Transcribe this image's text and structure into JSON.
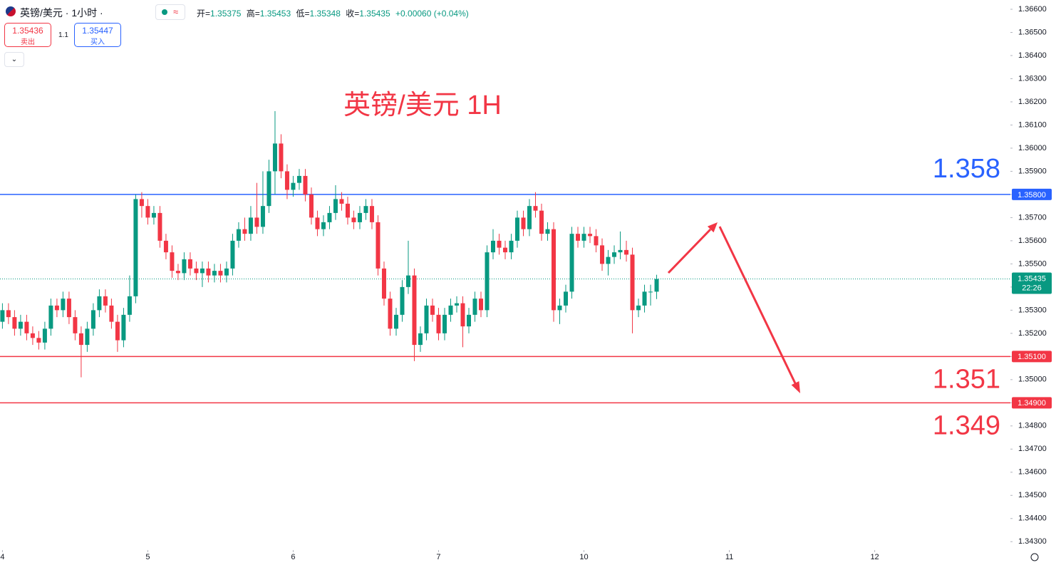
{
  "header": {
    "symbol": "英镑/美元 · 1小时 ·",
    "mode_icon": "≈",
    "ohlc": [
      {
        "label": "开=",
        "value": "1.35375"
      },
      {
        "label": "高=",
        "value": "1.35453"
      },
      {
        "label": "低=",
        "value": "1.35348"
      },
      {
        "label": "收=",
        "value": "1.35435"
      }
    ],
    "change": "+0.00060 (+0.04%)",
    "sell": {
      "price": "1.35436",
      "label": "卖出"
    },
    "spread": "1.1",
    "buy": {
      "price": "1.35447",
      "label": "买入"
    }
  },
  "chart_data": {
    "type": "candlestick",
    "title": "英镑/美元 1H",
    "x": [
      0,
      1,
      2,
      3,
      4,
      5,
      6,
      7,
      8,
      9,
      10,
      11,
      12,
      13,
      14,
      15,
      16,
      17,
      18,
      19,
      20,
      21,
      22,
      23,
      24,
      25,
      26,
      27,
      28,
      29,
      30,
      31,
      32,
      33,
      34,
      35,
      36,
      37,
      38,
      39,
      40,
      41,
      42,
      43,
      44,
      45,
      46,
      47,
      48,
      49,
      50,
      51,
      52,
      53,
      54,
      55,
      56,
      57,
      58,
      59,
      60,
      61,
      62,
      63,
      64,
      65,
      66,
      67,
      68,
      69,
      70,
      71,
      72,
      73,
      74,
      75,
      76,
      77,
      78,
      79,
      80,
      81,
      82,
      83,
      84,
      85,
      86,
      87,
      88,
      89,
      90,
      91,
      92,
      93,
      94,
      95,
      96,
      97,
      98,
      99,
      100,
      101,
      102,
      103,
      104,
      105,
      106,
      107,
      108
    ],
    "open": [
      1.3525,
      1.353,
      1.3527,
      1.3522,
      1.3525,
      1.352,
      1.3518,
      1.3516,
      1.3522,
      1.3532,
      1.353,
      1.3535,
      1.3527,
      1.352,
      1.3515,
      1.3522,
      1.353,
      1.3536,
      1.3532,
      1.3525,
      1.3517,
      1.3528,
      1.3536,
      1.3578,
      1.3575,
      1.357,
      1.3572,
      1.356,
      1.3555,
      1.3547,
      1.3546,
      1.3552,
      1.3548,
      1.3546,
      1.3548,
      1.3545,
      1.3547,
      1.3545,
      1.3548,
      1.356,
      1.3565,
      1.3563,
      1.357,
      1.3566,
      1.3575,
      1.359,
      1.3602,
      1.359,
      1.3582,
      1.3585,
      1.3588,
      1.358,
      1.357,
      1.3565,
      1.3568,
      1.3572,
      1.3578,
      1.3576,
      1.357,
      1.3568,
      1.3572,
      1.3575,
      1.3568,
      1.3548,
      1.3535,
      1.3522,
      1.3528,
      1.354,
      1.3545,
      1.3515,
      1.352,
      1.3532,
      1.3528,
      1.352,
      1.3528,
      1.3532,
      1.3533,
      1.3523,
      1.3528,
      1.3535,
      1.353,
      1.3555,
      1.356,
      1.3557,
      1.3555,
      1.356,
      1.357,
      1.3565,
      1.3575,
      1.3573,
      1.3563,
      1.3565,
      1.353,
      1.3532,
      1.3538,
      1.3563,
      1.356,
      1.3563,
      1.3562,
      1.3558,
      1.355,
      1.3553,
      1.3555,
      1.3556,
      1.3554,
      1.353,
      1.3532,
      1.3538,
      1.3538
    ],
    "high": [
      1.3533,
      1.3533,
      1.353,
      1.3528,
      1.3528,
      1.3523,
      1.3521,
      1.3525,
      1.3535,
      1.3535,
      1.3538,
      1.3538,
      1.353,
      1.3523,
      1.3525,
      1.3533,
      1.3539,
      1.3539,
      1.3535,
      1.3528,
      1.3531,
      1.3545,
      1.358,
      1.3581,
      1.3578,
      1.3575,
      1.3575,
      1.3563,
      1.3558,
      1.355,
      1.3555,
      1.3555,
      1.3551,
      1.3551,
      1.3551,
      1.355,
      1.355,
      1.3551,
      1.3563,
      1.3568,
      1.357,
      1.3575,
      1.3585,
      1.359,
      1.3595,
      1.3616,
      1.3606,
      1.3593,
      1.3588,
      1.3591,
      1.3591,
      1.3583,
      1.3573,
      1.3571,
      1.3575,
      1.3584,
      1.3581,
      1.3579,
      1.3573,
      1.3575,
      1.3578,
      1.3578,
      1.3571,
      1.3551,
      1.3538,
      1.3531,
      1.3543,
      1.356,
      1.3548,
      1.3523,
      1.3535,
      1.3535,
      1.3531,
      1.3531,
      1.3535,
      1.3536,
      1.3536,
      1.3531,
      1.3538,
      1.3538,
      1.3558,
      1.3565,
      1.3563,
      1.356,
      1.3563,
      1.3573,
      1.3573,
      1.3578,
      1.3581,
      1.3576,
      1.3568,
      1.3568,
      1.3535,
      1.3541,
      1.3566,
      1.3566,
      1.3566,
      1.3566,
      1.3565,
      1.3561,
      1.3556,
      1.3558,
      1.3564,
      1.356,
      1.3557,
      1.3535,
      1.3541,
      1.3541,
      1.35453
    ],
    "low": [
      1.3522,
      1.3524,
      1.3519,
      1.3519,
      1.3517,
      1.3515,
      1.3513,
      1.3513,
      1.3519,
      1.3527,
      1.3527,
      1.3524,
      1.3517,
      1.3501,
      1.3512,
      1.3519,
      1.3527,
      1.3529,
      1.3522,
      1.3512,
      1.3514,
      1.3525,
      1.3533,
      1.357,
      1.3567,
      1.3567,
      1.3557,
      1.3552,
      1.3544,
      1.3543,
      1.3543,
      1.3545,
      1.3543,
      1.354,
      1.3542,
      1.3542,
      1.3542,
      1.3542,
      1.3545,
      1.3557,
      1.356,
      1.356,
      1.3563,
      1.3563,
      1.3572,
      1.358,
      1.3587,
      1.3578,
      1.3579,
      1.3582,
      1.3577,
      1.3567,
      1.3562,
      1.3562,
      1.3565,
      1.3569,
      1.3573,
      1.3567,
      1.3565,
      1.3565,
      1.3569,
      1.3565,
      1.3545,
      1.3532,
      1.3519,
      1.3519,
      1.3525,
      1.3537,
      1.3508,
      1.3512,
      1.3517,
      1.3525,
      1.3517,
      1.3517,
      1.3525,
      1.3529,
      1.3514,
      1.352,
      1.3525,
      1.3527,
      1.3527,
      1.3552,
      1.3554,
      1.3552,
      1.3552,
      1.3557,
      1.3562,
      1.3562,
      1.357,
      1.356,
      1.356,
      1.3525,
      1.3524,
      1.3529,
      1.3535,
      1.3557,
      1.3557,
      1.3559,
      1.3555,
      1.3547,
      1.3545,
      1.355,
      1.3552,
      1.3551,
      1.352,
      1.3527,
      1.3529,
      1.3532,
      1.35348
    ],
    "close": [
      1.353,
      1.3527,
      1.3522,
      1.3525,
      1.352,
      1.3518,
      1.3516,
      1.3522,
      1.3532,
      1.353,
      1.3535,
      1.3527,
      1.352,
      1.3515,
      1.3522,
      1.353,
      1.3536,
      1.3532,
      1.3525,
      1.3517,
      1.3528,
      1.3536,
      1.3578,
      1.3575,
      1.357,
      1.3572,
      1.356,
      1.3555,
      1.3547,
      1.3546,
      1.3552,
      1.3548,
      1.3546,
      1.3548,
      1.3545,
      1.3547,
      1.3545,
      1.3548,
      1.356,
      1.3565,
      1.3563,
      1.357,
      1.3566,
      1.3575,
      1.359,
      1.3602,
      1.359,
      1.3582,
      1.3585,
      1.3588,
      1.358,
      1.357,
      1.3565,
      1.3568,
      1.3572,
      1.3578,
      1.3576,
      1.357,
      1.3568,
      1.3572,
      1.3575,
      1.3568,
      1.3548,
      1.3535,
      1.3522,
      1.3528,
      1.354,
      1.3545,
      1.3515,
      1.352,
      1.3532,
      1.3528,
      1.352,
      1.3528,
      1.3532,
      1.3533,
      1.3523,
      1.3528,
      1.3535,
      1.353,
      1.3555,
      1.356,
      1.3557,
      1.3555,
      1.356,
      1.357,
      1.3565,
      1.3575,
      1.3573,
      1.3563,
      1.3565,
      1.353,
      1.3532,
      1.3538,
      1.3563,
      1.356,
      1.3563,
      1.3562,
      1.3558,
      1.355,
      1.3553,
      1.3555,
      1.3556,
      1.3554,
      1.353,
      1.3532,
      1.3538,
      1.3538,
      1.35435
    ],
    "up_color": "#089981",
    "down_color": "#f23645",
    "xlim": [
      -0.4,
      166.4
    ],
    "xticks": [
      {
        "value": 0,
        "label": "4"
      },
      {
        "value": 24,
        "label": "5"
      },
      {
        "value": 48,
        "label": "6"
      },
      {
        "value": 72,
        "label": "7"
      },
      {
        "value": 96,
        "label": "10"
      },
      {
        "value": 120,
        "label": "11"
      },
      {
        "value": 144,
        "label": "12"
      }
    ],
    "ylim": [
      1.3427,
      1.3664
    ],
    "yticks": [
      {
        "value": 1.366,
        "label": "1.36600"
      },
      {
        "value": 1.365,
        "label": "1.36500"
      },
      {
        "value": 1.364,
        "label": "1.36400"
      },
      {
        "value": 1.363,
        "label": "1.36300"
      },
      {
        "value": 1.362,
        "label": "1.36200"
      },
      {
        "value": 1.361,
        "label": "1.36100"
      },
      {
        "value": 1.36,
        "label": "1.36000"
      },
      {
        "value": 1.359,
        "label": "1.35900"
      },
      {
        "value": 1.358,
        "label": "1.35800"
      },
      {
        "value": 1.357,
        "label": "1.35700"
      },
      {
        "value": 1.356,
        "label": "1.35600"
      },
      {
        "value": 1.355,
        "label": "1.35500"
      },
      {
        "value": 1.354,
        "label": "1.35400"
      },
      {
        "value": 1.353,
        "label": "1.35300"
      },
      {
        "value": 1.352,
        "label": "1.35200"
      },
      {
        "value": 1.351,
        "label": "1.35100"
      },
      {
        "value": 1.35,
        "label": "1.35000"
      },
      {
        "value": 1.349,
        "label": "1.34900"
      },
      {
        "value": 1.348,
        "label": "1.34800"
      },
      {
        "value": 1.347,
        "label": "1.34700"
      },
      {
        "value": 1.346,
        "label": "1.34600"
      },
      {
        "value": 1.345,
        "label": "1.34500"
      },
      {
        "value": 1.344,
        "label": "1.34400"
      },
      {
        "value": 1.343,
        "label": "1.34300"
      }
    ],
    "grid": false,
    "levels": [
      {
        "value": 1.358,
        "label": "1.35800",
        "color": "#2962ff"
      },
      {
        "value": 1.351,
        "label": "1.35100",
        "color": "#f23645"
      },
      {
        "value": 1.349,
        "label": "1.34900",
        "color": "#f23645"
      }
    ],
    "last_price": {
      "value": 1.35435,
      "countdown": "22:26",
      "color": "#089981"
    }
  }
}
